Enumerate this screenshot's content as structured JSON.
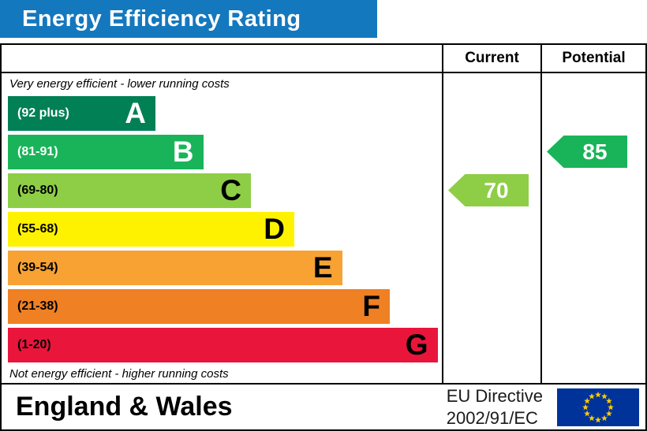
{
  "title": "Energy Efficiency Rating",
  "columns": {
    "current": "Current",
    "potential": "Potential"
  },
  "notes": {
    "top": "Very energy efficient - lower running costs",
    "bottom": "Not energy efficient - higher running costs"
  },
  "footer": {
    "region": "England & Wales",
    "directive_line1": "EU Directive",
    "directive_line2": "2002/91/EC"
  },
  "colors": {
    "title_bar": "#1478be",
    "border": "#000000",
    "eu_flag_blue": "#003399",
    "eu_star_yellow": "#ffcc00"
  },
  "icons": {
    "eu_flag": "eu-flag-icon"
  },
  "chart_data": {
    "type": "bar",
    "title": "Energy Efficiency Rating",
    "bands": [
      {
        "letter": "A",
        "range_label": "(92 plus)",
        "range": [
          92,
          100
        ],
        "color": "#008054",
        "text_color": "#ffffff",
        "width_pct": 34
      },
      {
        "letter": "B",
        "range_label": "(81-91)",
        "range": [
          81,
          91
        ],
        "color": "#19b459",
        "text_color": "#ffffff",
        "width_pct": 45
      },
      {
        "letter": "C",
        "range_label": "(69-80)",
        "range": [
          69,
          80
        ],
        "color": "#8dce46",
        "text_color": "#000000",
        "width_pct": 56
      },
      {
        "letter": "D",
        "range_label": "(55-68)",
        "range": [
          55,
          68
        ],
        "color": "#fff200",
        "text_color": "#000000",
        "width_pct": 66
      },
      {
        "letter": "E",
        "range_label": "(39-54)",
        "range": [
          39,
          54
        ],
        "color": "#f7a233",
        "text_color": "#000000",
        "width_pct": 77
      },
      {
        "letter": "F",
        "range_label": "(21-38)",
        "range": [
          21,
          38
        ],
        "color": "#ef8023",
        "text_color": "#000000",
        "width_pct": 88
      },
      {
        "letter": "G",
        "range_label": "(1-20)",
        "range": [
          1,
          20
        ],
        "color": "#e9153b",
        "text_color": "#000000",
        "width_pct": 99
      }
    ],
    "current": {
      "value": 70,
      "band": "C",
      "color": "#8dce46"
    },
    "potential": {
      "value": 85,
      "band": "B",
      "color": "#19b459"
    }
  }
}
